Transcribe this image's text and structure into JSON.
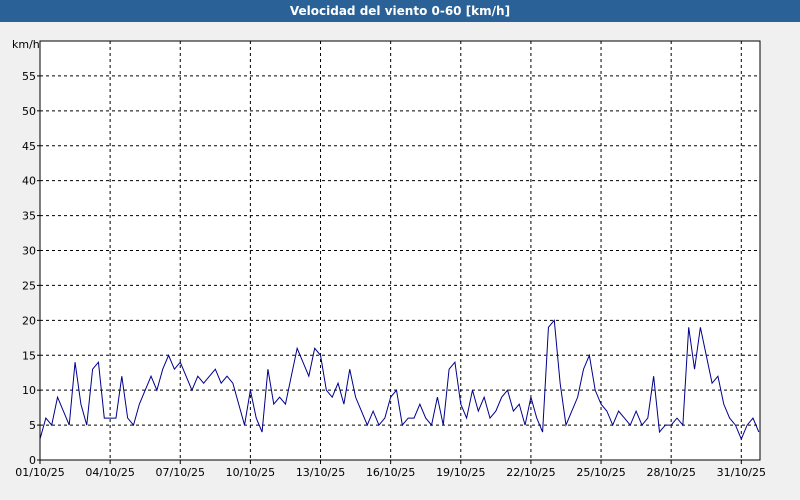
{
  "chart_data": {
    "type": "line",
    "title": "Velocidad del viento 0-60 [km/h]",
    "y_label": "km/h",
    "x": [
      0,
      0.25,
      0.5,
      0.75,
      1,
      1.25,
      1.5,
      1.75,
      2,
      2.25,
      2.5,
      2.75,
      3,
      3.25,
      3.5,
      3.75,
      4,
      4.25,
      4.5,
      4.75,
      5,
      5.25,
      5.5,
      5.75,
      6,
      6.25,
      6.5,
      6.75,
      7,
      7.25,
      7.5,
      7.75,
      8,
      8.25,
      8.5,
      8.75,
      9,
      9.25,
      9.5,
      9.75,
      10,
      10.25,
      10.5,
      10.75,
      11,
      11.25,
      11.5,
      11.75,
      12,
      12.25,
      12.5,
      12.75,
      13,
      13.25,
      13.5,
      13.75,
      14,
      14.25,
      14.5,
      14.75,
      15,
      15.25,
      15.5,
      15.75,
      16,
      16.25,
      16.5,
      16.75,
      17,
      17.25,
      17.5,
      17.75,
      18,
      18.25,
      18.5,
      18.75,
      19,
      19.25,
      19.5,
      19.75,
      20,
      20.25,
      20.5,
      20.75,
      21,
      21.25,
      21.5,
      21.75,
      22,
      22.25,
      22.5,
      22.75,
      23,
      23.25,
      23.5,
      23.75,
      24,
      24.25,
      24.5,
      24.75,
      25,
      25.25,
      25.5,
      25.75,
      26,
      26.25,
      26.5,
      26.75,
      27,
      27.25,
      27.5,
      27.75,
      28,
      28.25,
      28.5,
      28.75,
      29,
      29.25,
      29.5,
      29.75,
      30,
      30.25,
      30.5,
      30.75
    ],
    "series": [
      {
        "name": "Velocidad del viento",
        "color": "#00008b",
        "values": [
          3,
          6,
          5,
          9,
          7,
          5,
          14,
          8,
          5,
          13,
          14,
          6,
          6,
          6,
          12,
          6,
          5,
          8,
          10,
          12,
          10,
          13,
          15,
          13,
          14,
          12,
          10,
          12,
          11,
          12,
          13,
          11,
          12,
          11,
          8,
          5,
          10,
          6,
          4,
          13,
          8,
          9,
          8,
          12,
          16,
          14,
          12,
          16,
          15,
          10,
          9,
          11,
          8,
          13,
          9,
          7,
          5,
          7,
          5,
          6,
          9,
          10,
          5,
          6,
          6,
          8,
          6,
          5,
          9,
          5,
          13,
          14,
          8,
          6,
          10,
          7,
          9,
          6,
          7,
          9,
          10,
          7,
          8,
          5,
          9,
          6,
          4,
          19,
          20,
          11,
          5,
          7,
          9,
          13,
          15,
          10,
          8,
          7,
          5,
          7,
          6,
          5,
          7,
          5,
          6,
          12,
          4,
          5,
          5,
          6,
          5,
          19,
          13,
          19,
          15,
          11,
          12,
          8,
          6,
          5,
          3,
          5,
          6,
          4
        ]
      }
    ],
    "xlim": [
      0,
      30.8
    ],
    "ylim": [
      0,
      60
    ],
    "xticks": [
      {
        "value": 0,
        "label": "01/10/25"
      },
      {
        "value": 3,
        "label": "04/10/25"
      },
      {
        "value": 6,
        "label": "07/10/25"
      },
      {
        "value": 9,
        "label": "10/10/25"
      },
      {
        "value": 12,
        "label": "13/10/25"
      },
      {
        "value": 15,
        "label": "16/10/25"
      },
      {
        "value": 18,
        "label": "19/10/25"
      },
      {
        "value": 21,
        "label": "22/10/25"
      },
      {
        "value": 24,
        "label": "25/10/25"
      },
      {
        "value": 27,
        "label": "28/10/25"
      },
      {
        "value": 30,
        "label": "31/10/25"
      }
    ],
    "yticks": [
      0,
      5,
      10,
      15,
      20,
      25,
      30,
      35,
      40,
      45,
      50,
      55
    ],
    "grid": true
  }
}
